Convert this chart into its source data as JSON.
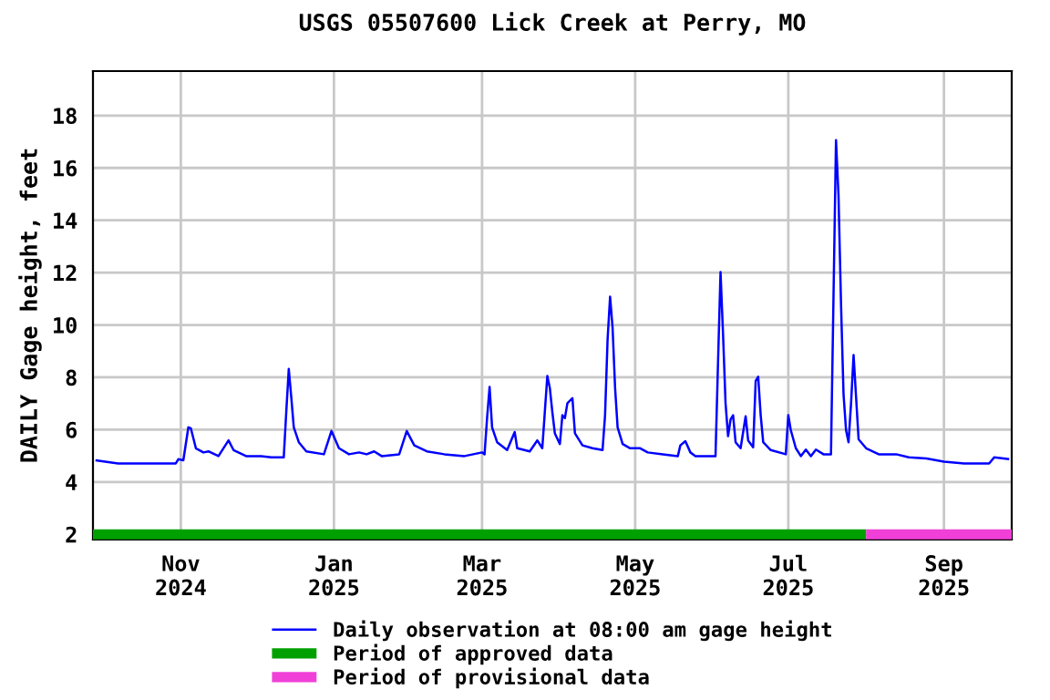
{
  "chart_data": {
    "type": "line",
    "title": "USGS 05507600 Lick Creek at Perry, MO",
    "ylabel": "DAILY Gage height, feet",
    "x": [
      "2024-09-28",
      "2024-10-07",
      "2024-10-30",
      "2024-10-31",
      "2024-11-02",
      "2024-11-04",
      "2024-11-05",
      "2024-11-07",
      "2024-11-10",
      "2024-11-12",
      "2024-11-16",
      "2024-11-20",
      "2024-11-22",
      "2024-11-27",
      "2024-12-03",
      "2024-12-07",
      "2024-12-12",
      "2024-12-13",
      "2024-12-14",
      "2024-12-15",
      "2024-12-16",
      "2024-12-18",
      "2024-12-21",
      "2024-12-28",
      "2024-12-31",
      "2025-01-03",
      "2025-01-07",
      "2025-01-11",
      "2025-01-14",
      "2025-01-17",
      "2025-01-20",
      "2025-01-27",
      "2025-01-30",
      "2025-02-02",
      "2025-02-07",
      "2025-02-14",
      "2025-02-22",
      "2025-03-01",
      "2025-03-02",
      "2025-03-03",
      "2025-03-04",
      "2025-03-05",
      "2025-03-07",
      "2025-03-11",
      "2025-03-14",
      "2025-03-15",
      "2025-03-20",
      "2025-03-23",
      "2025-03-25",
      "2025-03-26",
      "2025-03-27",
      "2025-03-28",
      "2025-03-29",
      "2025-03-30",
      "2025-04-01",
      "2025-04-02",
      "2025-04-03",
      "2025-04-04",
      "2025-04-06",
      "2025-04-07",
      "2025-04-10",
      "2025-04-14",
      "2025-04-18",
      "2025-04-19",
      "2025-04-20",
      "2025-04-21",
      "2025-04-22",
      "2025-04-23",
      "2025-04-24",
      "2025-04-26",
      "2025-04-29",
      "2025-05-03",
      "2025-05-06",
      "2025-05-12",
      "2025-05-18",
      "2025-05-19",
      "2025-05-21",
      "2025-05-23",
      "2025-05-25",
      "2025-06-02",
      "2025-06-03",
      "2025-06-04",
      "2025-06-05",
      "2025-06-06",
      "2025-06-07",
      "2025-06-08",
      "2025-06-09",
      "2025-06-10",
      "2025-06-12",
      "2025-06-14",
      "2025-06-15",
      "2025-06-17",
      "2025-06-18",
      "2025-06-19",
      "2025-06-20",
      "2025-06-21",
      "2025-06-24",
      "2025-06-30",
      "2025-07-01",
      "2025-07-02",
      "2025-07-04",
      "2025-07-06",
      "2025-07-08",
      "2025-07-10",
      "2025-07-12",
      "2025-07-15",
      "2025-07-18",
      "2025-07-19",
      "2025-07-20",
      "2025-07-21",
      "2025-07-22",
      "2025-07-23",
      "2025-07-24",
      "2025-07-25",
      "2025-07-26",
      "2025-07-27",
      "2025-07-28",
      "2025-07-29",
      "2025-08-01",
      "2025-08-06",
      "2025-08-13",
      "2025-08-18",
      "2025-08-25",
      "2025-09-01",
      "2025-09-09",
      "2025-09-19",
      "2025-09-21",
      "2025-09-27"
    ],
    "series": [
      {
        "name": "Daily observation at 08:00 am gage height",
        "color": "#0000ff",
        "values": [
          4.83,
          4.71,
          4.71,
          4.87,
          4.83,
          6.09,
          6.05,
          5.29,
          5.13,
          5.17,
          4.99,
          5.59,
          5.22,
          4.99,
          4.99,
          4.94,
          4.94,
          6.67,
          8.32,
          7.24,
          6.09,
          5.52,
          5.17,
          5.06,
          5.95,
          5.29,
          5.06,
          5.13,
          5.06,
          5.17,
          4.99,
          5.06,
          5.95,
          5.4,
          5.17,
          5.06,
          4.99,
          5.13,
          5.06,
          6.44,
          7.63,
          6.09,
          5.52,
          5.22,
          5.91,
          5.29,
          5.17,
          5.59,
          5.29,
          6.67,
          8.05,
          7.59,
          6.67,
          5.86,
          5.45,
          6.55,
          6.44,
          7.01,
          7.2,
          5.86,
          5.4,
          5.29,
          5.22,
          6.55,
          9.43,
          11.08,
          9.89,
          7.59,
          6.09,
          5.45,
          5.29,
          5.29,
          5.13,
          5.06,
          4.99,
          5.4,
          5.56,
          5.13,
          4.99,
          4.99,
          8.55,
          12.02,
          9.66,
          7.01,
          5.75,
          6.39,
          6.55,
          5.52,
          5.29,
          6.51,
          5.59,
          5.33,
          7.86,
          8.02,
          6.55,
          5.52,
          5.22,
          5.06,
          6.55,
          5.98,
          5.29,
          4.99,
          5.24,
          4.99,
          5.24,
          5.06,
          5.06,
          11.03,
          17.06,
          14.94,
          10.8,
          7.36,
          5.98,
          5.52,
          7.01,
          8.85,
          7.24,
          5.63,
          5.29,
          5.06,
          5.06,
          4.94,
          4.9,
          4.78,
          4.71,
          4.71,
          4.94,
          4.87
        ]
      },
      {
        "name": "Period of approved data",
        "color": "#00a000",
        "x": [
          "2024-09-27",
          "2025-08-01"
        ],
        "values": [
          2,
          2
        ]
      },
      {
        "name": "Period of provisional data",
        "color": "#f040d8",
        "x": [
          "2025-08-01",
          "2025-09-28"
        ],
        "values": [
          2,
          2
        ]
      }
    ],
    "xlim": [
      "2024-09-27",
      "2025-09-28"
    ],
    "xticks": [
      {
        "value": "2024-11-01",
        "label": "Nov\n2024"
      },
      {
        "value": "2025-01-01",
        "label": "Jan\n2025"
      },
      {
        "value": "2025-03-01",
        "label": "Mar\n2025"
      },
      {
        "value": "2025-05-01",
        "label": "May\n2025"
      },
      {
        "value": "2025-07-01",
        "label": "Jul\n2025"
      },
      {
        "value": "2025-09-01",
        "label": "Sep\n2025"
      }
    ],
    "ylim": [
      1.8,
      19.7
    ],
    "yticks": [
      2,
      4,
      6,
      8,
      10,
      12,
      14,
      16,
      18
    ],
    "grid": true,
    "legend": "bottom",
    "line_style": "solid",
    "marker": "none"
  }
}
